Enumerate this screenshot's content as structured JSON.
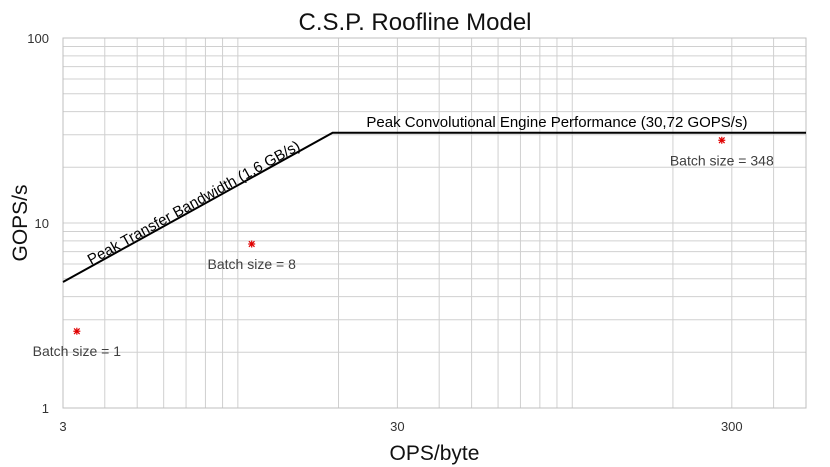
{
  "chart_data": {
    "type": "line",
    "title": "C.S.P. Roofline Model",
    "xlabel": "OPS/byte",
    "ylabel": "GOPS/s",
    "x_scale": "log",
    "y_scale": "log",
    "xlim": [
      3,
      500
    ],
    "ylim": [
      1,
      100
    ],
    "grid": true,
    "x_ticks": [
      {
        "value": 3,
        "label": "3"
      },
      {
        "value": 30,
        "label": "30"
      },
      {
        "value": 300,
        "label": "300"
      }
    ],
    "y_ticks": [
      {
        "value": 1,
        "label": "1"
      },
      {
        "value": 10,
        "label": "10"
      },
      {
        "value": 100,
        "label": "100"
      }
    ],
    "series": [
      {
        "points": [
          [
            3,
            4.8
          ],
          [
            19.2,
            30.72
          ],
          [
            500,
            30.72
          ]
        ],
        "color": "#000000"
      }
    ],
    "annotations": [
      {
        "text": "Peak Transfer Bandwidth (1,6 GB/s)",
        "x": 7.5,
        "y": 12.2
      },
      {
        "text": "Peak Convolutional Engine Performance (30,72 GOPS/s)",
        "x": 90,
        "y": 33
      }
    ],
    "points": [
      {
        "x": 3.3,
        "y": 2.6,
        "label": "Batch size = 1",
        "marker": "star",
        "color": "#e00000"
      },
      {
        "x": 11,
        "y": 7.7,
        "label": "Batch size = 8",
        "marker": "star",
        "color": "#e00000"
      },
      {
        "x": 280,
        "y": 28,
        "label": "Batch size = 348",
        "marker": "star",
        "color": "#e00000"
      }
    ]
  }
}
